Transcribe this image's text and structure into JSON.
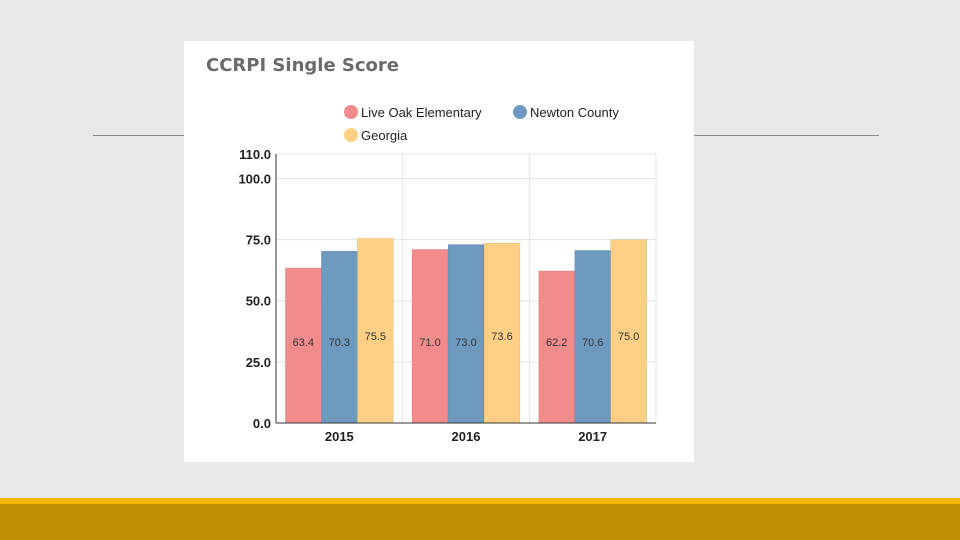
{
  "chart_data": {
    "type": "bar",
    "title": "CCRPI Single Score",
    "categories": [
      "2015",
      "2016",
      "2017"
    ],
    "series": [
      {
        "name": "Live Oak Elementary",
        "color": "#f28b8b",
        "values": [
          63.4,
          71.0,
          62.2
        ],
        "labels": [
          "63.4",
          "71.0",
          "62.2"
        ]
      },
      {
        "name": "Newton County",
        "color": "#6f9ac0",
        "values": [
          70.3,
          73.0,
          70.6
        ],
        "labels": [
          "70.3",
          "73.0",
          "70.6"
        ]
      },
      {
        "name": "Georgia",
        "color": "#fdd085",
        "values": [
          75.5,
          73.6,
          75.0
        ],
        "labels": [
          "75.5",
          "73.6",
          "75.0"
        ]
      }
    ],
    "yticks": [
      {
        "value": 0,
        "label": "0.0"
      },
      {
        "value": 25,
        "label": "25.0"
      },
      {
        "value": 50,
        "label": "50.0"
      },
      {
        "value": 75,
        "label": "75.0"
      },
      {
        "value": 100,
        "label": "100.0"
      },
      {
        "value": 110,
        "label": "110.0"
      }
    ],
    "ylim": [
      0,
      110
    ],
    "xlabel": "",
    "ylabel": "",
    "legend_position": "top",
    "grid": true
  },
  "colors": {
    "accent_stripe": "#f5b800",
    "footer_band": "#bf9000"
  }
}
